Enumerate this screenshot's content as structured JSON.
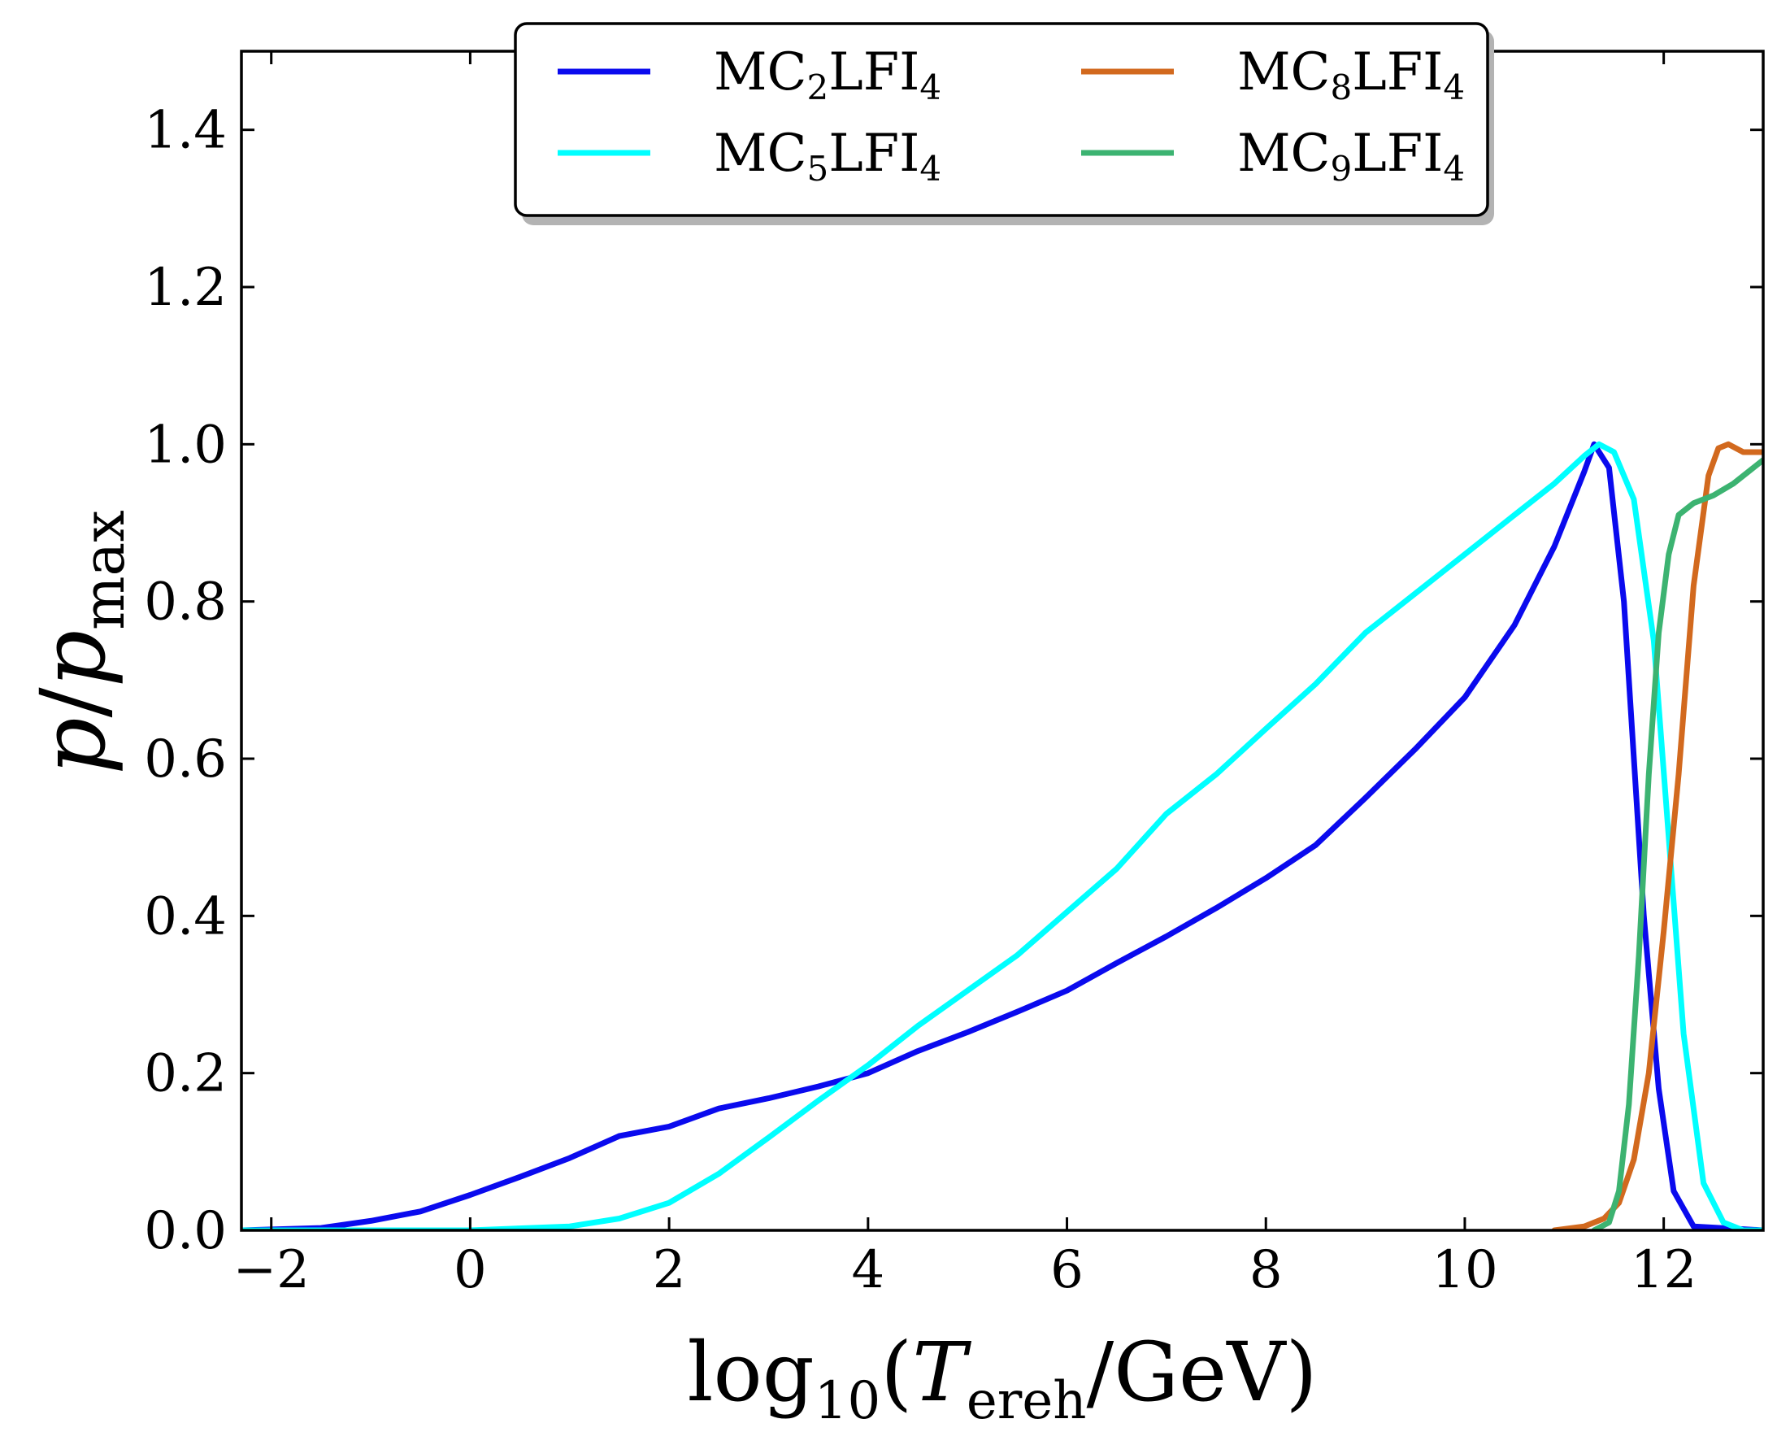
{
  "chart_data": {
    "type": "line",
    "title": "",
    "xlabel": {
      "main": "log",
      "sub": "10",
      "open": "(",
      "var": "T",
      "var_sub": "ereh",
      "unit": "/GeV)"
    },
    "ylabel": {
      "var": "p",
      "slash": "/",
      "var2": "p",
      "var2_sub": "max"
    },
    "xlim": [
      -2.3,
      13.0
    ],
    "ylim": [
      0.0,
      1.5
    ],
    "xticks": [
      -2,
      0,
      2,
      4,
      6,
      8,
      10,
      12
    ],
    "xtick_labels": [
      "−2",
      "0",
      "2",
      "4",
      "6",
      "8",
      "10",
      "12"
    ],
    "yticks": [
      0.0,
      0.2,
      0.4,
      0.6,
      0.8,
      1.0,
      1.2,
      1.4
    ],
    "ytick_labels": [
      "0.0",
      "0.2",
      "0.4",
      "0.6",
      "0.8",
      "1.0",
      "1.2",
      "1.4"
    ],
    "legend_position": "upper-center",
    "series": [
      {
        "name": "MC2LFI4",
        "label_base": "MC",
        "label_sub1": "2",
        "label_mid": "LFI",
        "label_sub2": "4",
        "color": "#0a0aee",
        "x": [
          -2.3,
          -1.5,
          -1.0,
          -0.5,
          0.0,
          0.5,
          1.0,
          1.5,
          2.0,
          2.5,
          3.0,
          3.5,
          4.0,
          4.5,
          5.0,
          5.5,
          6.0,
          6.5,
          7.0,
          7.5,
          8.0,
          8.5,
          9.0,
          9.5,
          10.0,
          10.5,
          10.9,
          11.2,
          11.3,
          11.45,
          11.6,
          11.8,
          11.95,
          12.1,
          12.3,
          13.0
        ],
        "y": [
          0.0,
          0.003,
          0.012,
          0.024,
          0.045,
          0.068,
          0.092,
          0.12,
          0.132,
          0.155,
          0.168,
          0.183,
          0.2,
          0.228,
          0.252,
          0.278,
          0.305,
          0.34,
          0.374,
          0.41,
          0.448,
          0.49,
          0.55,
          0.612,
          0.678,
          0.77,
          0.87,
          0.965,
          1.0,
          0.97,
          0.8,
          0.4,
          0.18,
          0.05,
          0.005,
          0.0
        ]
      },
      {
        "name": "MC5LFI4",
        "label_base": "MC",
        "label_sub1": "5",
        "label_mid": "LFI",
        "label_sub2": "4",
        "color": "#00ffff",
        "x": [
          -2.3,
          -1.0,
          0.0,
          1.0,
          1.5,
          2.0,
          2.5,
          3.0,
          3.5,
          4.0,
          4.5,
          5.0,
          5.5,
          6.0,
          6.5,
          7.0,
          7.5,
          8.0,
          8.5,
          9.0,
          9.5,
          10.0,
          10.5,
          10.9,
          11.2,
          11.35,
          11.5,
          11.7,
          11.9,
          12.05,
          12.2,
          12.4,
          12.6,
          12.8,
          13.0
        ],
        "y": [
          0.0,
          0.0,
          0.0,
          0.005,
          0.015,
          0.035,
          0.072,
          0.118,
          0.165,
          0.21,
          0.26,
          0.305,
          0.35,
          0.405,
          0.46,
          0.53,
          0.58,
          0.638,
          0.695,
          0.76,
          0.81,
          0.86,
          0.91,
          0.95,
          0.985,
          1.0,
          0.99,
          0.93,
          0.75,
          0.5,
          0.25,
          0.06,
          0.01,
          0.0,
          0.0
        ]
      },
      {
        "name": "MC8LFI4",
        "label_base": "MC",
        "label_sub1": "8",
        "label_mid": "LFI",
        "label_sub2": "4",
        "color": "#d2691e",
        "x": [
          10.9,
          11.2,
          11.4,
          11.55,
          11.7,
          11.85,
          12.0,
          12.15,
          12.3,
          12.45,
          12.55,
          12.65,
          12.8,
          13.0
        ],
        "y": [
          0.0,
          0.005,
          0.015,
          0.035,
          0.09,
          0.2,
          0.38,
          0.58,
          0.82,
          0.96,
          0.995,
          1.0,
          0.99,
          0.99
        ]
      },
      {
        "name": "MC9LFI4",
        "label_base": "MC",
        "label_sub1": "9",
        "label_mid": "LFI",
        "label_sub2": "4",
        "color": "#3cb371",
        "x": [
          11.3,
          11.45,
          11.55,
          11.65,
          11.75,
          11.85,
          11.95,
          12.05,
          12.15,
          12.3,
          12.5,
          12.7,
          12.85,
          13.0
        ],
        "y": [
          0.0,
          0.01,
          0.05,
          0.16,
          0.35,
          0.58,
          0.76,
          0.86,
          0.91,
          0.925,
          0.935,
          0.95,
          0.965,
          0.98
        ]
      }
    ]
  }
}
